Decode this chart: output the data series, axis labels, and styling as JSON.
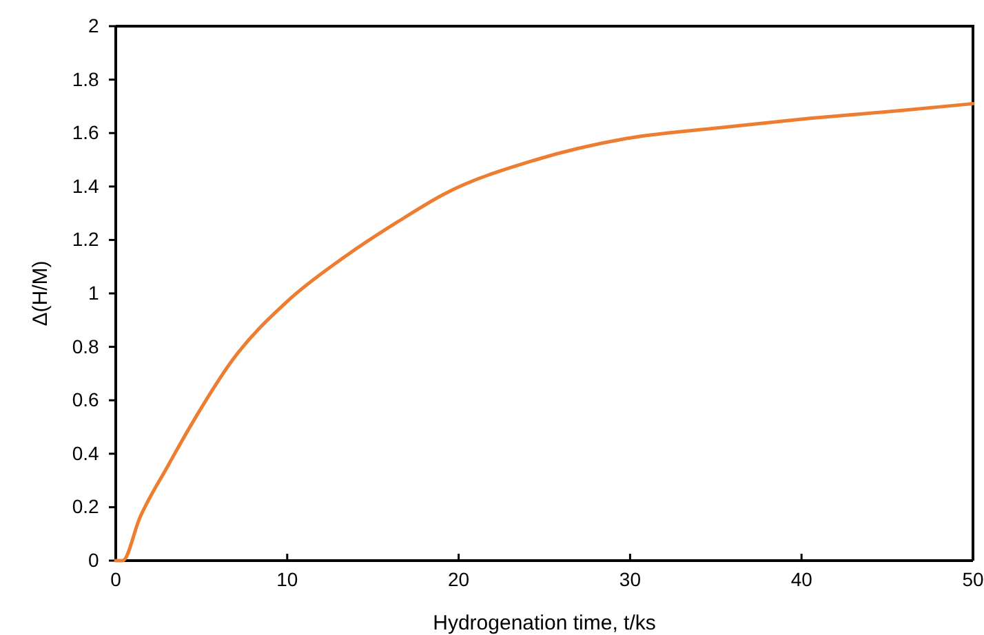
{
  "chart_data": {
    "type": "line",
    "xlabel": "Hydrogenation time, t/ks",
    "ylabel": "Δ(H/M)",
    "xlim": [
      0,
      50
    ],
    "ylim": [
      0,
      2
    ],
    "xticks": [
      0,
      10,
      20,
      30,
      40,
      50
    ],
    "yticks": [
      0,
      0.2,
      0.4,
      0.6,
      0.8,
      1,
      1.2,
      1.4,
      1.6,
      1.8,
      2
    ],
    "grid": false,
    "marker": "none",
    "line_style": "solid",
    "series": [
      {
        "color": "#ed7d31",
        "x": [
          0,
          0.4,
          1.4,
          3,
          4.6,
          6.8,
          10,
          13.2,
          16.5,
          19.1,
          24.5,
          29.8,
          35.2,
          40.5,
          45.9,
          50
        ],
        "values": [
          0,
          0,
          0.16,
          0.35,
          0.53,
          0.75,
          0.97,
          1.13,
          1.27,
          1.37,
          1.5,
          1.58,
          1.62,
          1.655,
          1.685,
          1.71
        ]
      }
    ]
  }
}
